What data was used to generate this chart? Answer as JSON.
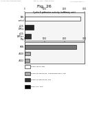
{
  "title": "Fig. 26",
  "chart_title": "Cyclin E promoter activity (arbitrary unit)",
  "x_max": 3000,
  "x_ticks": [
    0,
    1000,
    2000,
    3000
  ],
  "x_tick_labels": [
    "0",
    "1000",
    "2000",
    "3000"
  ],
  "group1_labels": [
    "SKN\ncontrol",
    "p120-\nLMP2α",
    "p120-\nLMP2α+\nIFNγ"
  ],
  "group1_values": [
    2800,
    450,
    320
  ],
  "group1_colors": [
    "#ffffff",
    "#222222",
    "#333333"
  ],
  "group2_labels": [
    "SKN",
    "#120",
    "#122"
  ],
  "group2_values": [
    2600,
    280,
    240
  ],
  "group2_colors": [
    "#777777",
    "#aaaaaa",
    "#aaaaaa"
  ],
  "legend_items": [
    {
      "label": "pCMV6-6xos, 5ug",
      "color": "#ffffff"
    },
    {
      "label": "pCMV6-6-LMP2-5xos, 1ug+pCMV6-5xos, 1ug",
      "color": "#aaaaaa"
    },
    {
      "label": "pCMV6-6-LMP2-5xos, 5ug",
      "color": "#333333"
    },
    {
      "label": "p53-4-Luc, 1ug",
      "color": "#000000"
    }
  ],
  "header1": "Human Application Publication",
  "header2": "Sep. 27, 2012   Sheet 36 of 52",
  "header3": "US 2012/0246993 A1",
  "background_color": "#ffffff"
}
